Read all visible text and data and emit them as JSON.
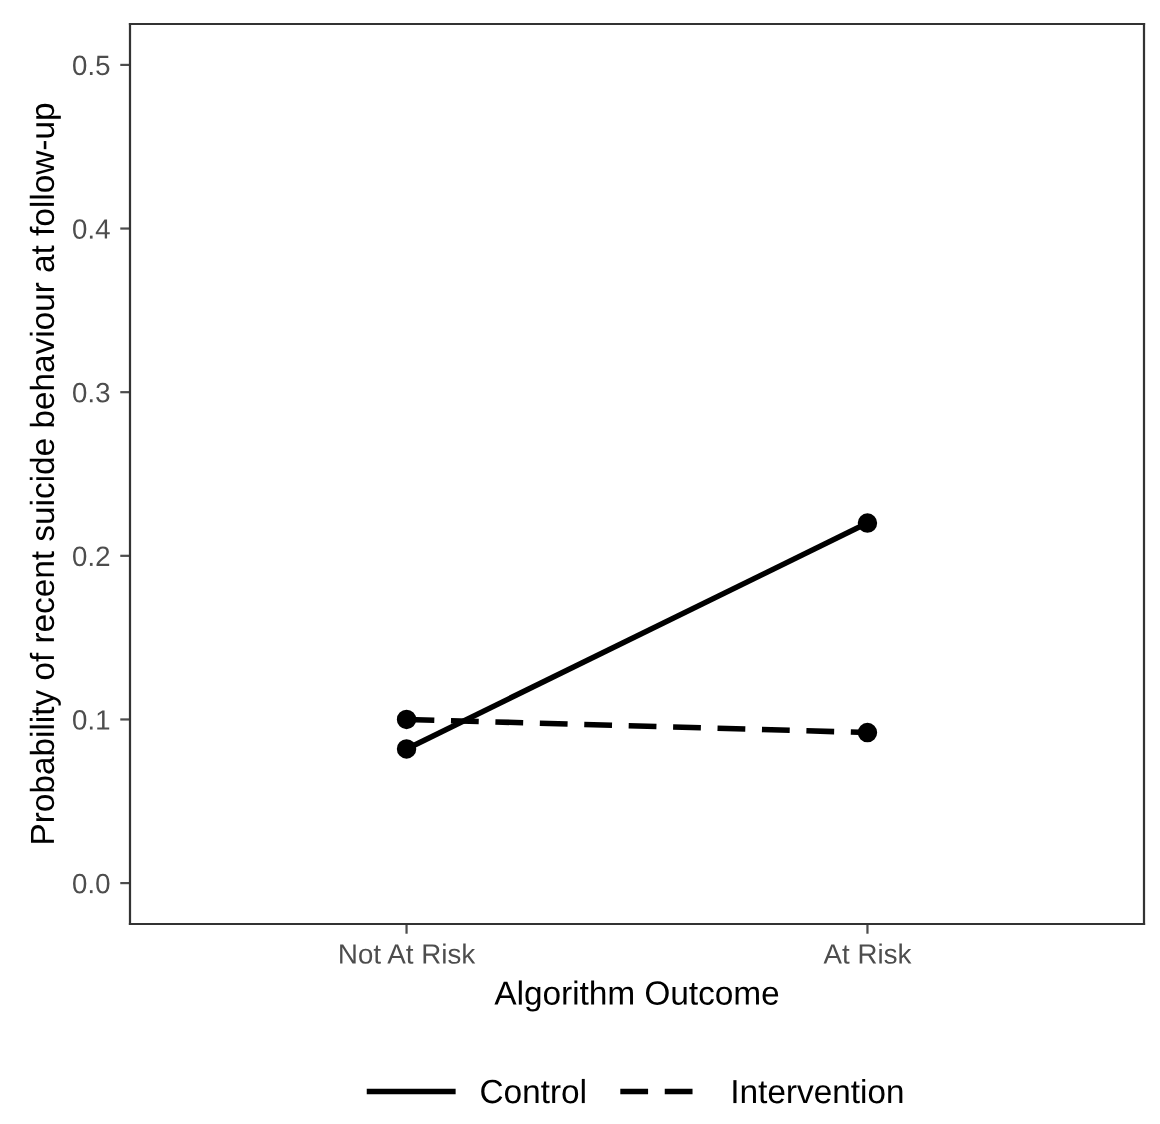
{
  "chart_data": {
    "type": "line",
    "xlabel": "Algorithm Outcome",
    "ylabel": "Probability of recent suicide behaviour at follow-up",
    "categories": [
      "Not At Risk",
      "At Risk"
    ],
    "series": [
      {
        "name": "Control",
        "color": "#000000",
        "values": [
          0.082,
          0.22
        ],
        "line_style": "solid"
      },
      {
        "name": "Intervention",
        "color": "#000000",
        "values": [
          0.1,
          0.092
        ],
        "line_style": "dashed"
      }
    ],
    "ylim": [
      -0.025,
      0.525
    ],
    "yticks": [
      {
        "value": 0,
        "label": "0.0"
      },
      {
        "value": 0.1,
        "label": "0.1"
      },
      {
        "value": 0.2,
        "label": "0.2"
      },
      {
        "value": 0.3,
        "label": "0.3"
      },
      {
        "value": 0.4,
        "label": "0.4"
      },
      {
        "value": 0.5,
        "label": "0.5"
      }
    ],
    "marker": "circle",
    "grid": false,
    "legend": "bottom"
  }
}
